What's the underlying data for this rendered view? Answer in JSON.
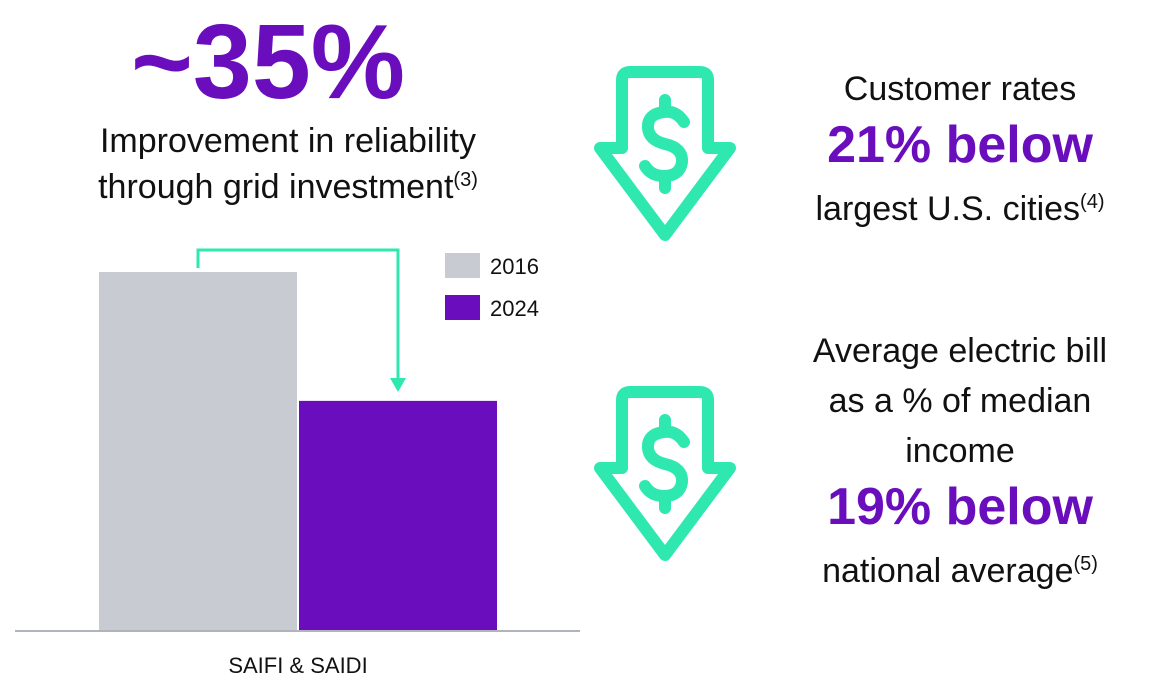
{
  "headline": {
    "value": "~35%",
    "caption_lines": [
      "Improvement in reliability",
      "through grid investment"
    ],
    "footnote": "(3)"
  },
  "chart_data": {
    "type": "bar",
    "categories": [
      "SAIFI & SAIDI"
    ],
    "series": [
      {
        "name": "2016",
        "color": "#c8ccd2",
        "values": [
          100
        ]
      },
      {
        "name": "2024",
        "color": "#6a0dbd",
        "values": [
          64
        ]
      }
    ],
    "ylim": [
      0,
      100
    ]
  },
  "callouts": [
    {
      "lines": [
        "Customer rates"
      ],
      "highlight": "21% below",
      "note": "largest U.S. cities",
      "footnote": "(4)"
    },
    {
      "lines": [
        "Average electric bill",
        "as a % of median",
        "income"
      ],
      "highlight": "19% below",
      "note": "national average",
      "footnote": "(5)"
    }
  ]
}
